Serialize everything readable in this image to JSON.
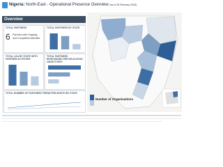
{
  "header": {
    "title": "Nigeria:",
    "subtitle": "North-East - Operational Presence Overview",
    "date": "(as of 28 February 2018)"
  },
  "section": "Overview",
  "panels": {
    "total_partners": {
      "title": "TOTAL PARTNERS",
      "value": 6,
      "label": "Partners with Ongoing and Completed Activities"
    },
    "partners_by_state": {
      "title": "TOTAL PARTNERS BY STATE",
      "values": [
        6,
        5,
        2
      ]
    },
    "lga_by_state": {
      "title": "TOTAL LGA BY STATE WITH PARTNER ACTIVITIES",
      "values": [
        9,
        6,
        4
      ]
    },
    "education_objectives": {
      "title": "TOTAL PARTNERS RESPONDING PER EDUCATION OBJECTIVES*",
      "values": [
        6,
        4,
        2
      ]
    },
    "trend": {
      "title": "TOTAL NUMBER OF PARTNERS TREND PER MONTH BY STATE"
    }
  },
  "map_legend": {
    "title": "Number of Organisations"
  }
}
